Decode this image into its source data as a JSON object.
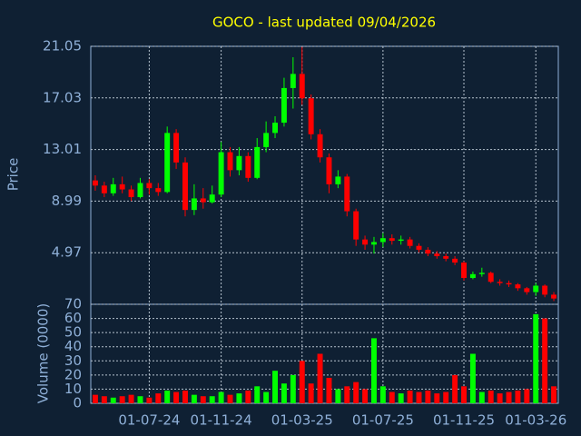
{
  "chart_data": {
    "type": "candlestick",
    "title": "GOCO - last updated 09/04/2026",
    "ylabel": "Price",
    "volume_label": "Volume (0000)",
    "up_color": "#00ff00",
    "down_color": "#ff0000",
    "grid": true,
    "ylim": [
      0.95,
      21.05
    ],
    "yticks": [
      4.97,
      8.99,
      13.01,
      17.03,
      21.05
    ],
    "volume_ylim": [
      0,
      70
    ],
    "volume_yticks": [
      0,
      10,
      20,
      30,
      40,
      50,
      60,
      70
    ],
    "categories": [
      null,
      null,
      null,
      null,
      null,
      null,
      "01-07-24",
      null,
      null,
      null,
      null,
      null,
      null,
      null,
      "01-11-24",
      null,
      null,
      null,
      null,
      null,
      null,
      null,
      null,
      "01-03-25",
      null,
      null,
      null,
      null,
      null,
      null,
      null,
      null,
      "01-07-25",
      null,
      null,
      null,
      null,
      null,
      null,
      null,
      null,
      "01-11-25",
      null,
      null,
      null,
      null,
      null,
      null,
      null,
      "01-03-26",
      null,
      null
    ],
    "open": [
      10.6,
      10.2,
      9.6,
      10.3,
      9.9,
      9.3,
      10.4,
      10.0,
      9.7,
      14.3,
      12.0,
      8.3,
      9.2,
      8.9,
      9.5,
      12.8,
      11.4,
      12.5,
      10.8,
      13.2,
      14.3,
      15.1,
      17.8,
      18.9,
      17.0,
      14.2,
      12.4,
      10.3,
      10.9,
      8.2,
      6.0,
      5.6,
      5.8,
      6.1,
      5.9,
      6.0,
      5.5,
      5.2,
      4.9,
      4.7,
      4.5,
      4.2,
      3.0,
      3.3,
      3.4,
      2.7,
      2.6,
      2.5,
      2.2,
      1.9,
      2.4,
      1.7
    ],
    "high": [
      11.0,
      10.5,
      10.8,
      10.9,
      10.2,
      10.8,
      10.7,
      10.4,
      14.8,
      14.6,
      12.4,
      10.3,
      10.0,
      10.2,
      13.6,
      13.2,
      13.2,
      12.8,
      13.9,
      15.2,
      15.6,
      18.6,
      20.2,
      21.0,
      17.3,
      14.6,
      12.7,
      11.4,
      11.1,
      8.4,
      6.3,
      6.2,
      6.5,
      6.4,
      6.3,
      6.2,
      5.7,
      5.4,
      5.1,
      4.9,
      4.7,
      4.3,
      3.5,
      3.8,
      3.5,
      2.9,
      2.8,
      2.6,
      2.3,
      2.6,
      2.5,
      1.9
    ],
    "low": [
      9.8,
      9.3,
      9.4,
      9.6,
      9.0,
      9.2,
      9.5,
      9.4,
      9.6,
      11.5,
      7.8,
      7.9,
      8.4,
      8.8,
      9.3,
      10.9,
      11.0,
      10.5,
      10.7,
      12.8,
      13.9,
      14.8,
      16.2,
      16.5,
      13.8,
      12.0,
      9.6,
      10.0,
      7.8,
      5.5,
      5.2,
      4.9,
      5.4,
      5.6,
      5.6,
      5.3,
      5.0,
      4.7,
      4.5,
      4.3,
      4.0,
      2.8,
      2.9,
      3.1,
      2.6,
      2.4,
      2.3,
      2.0,
      1.7,
      1.6,
      1.5,
      1.2
    ],
    "close": [
      10.2,
      9.6,
      10.3,
      9.9,
      9.3,
      10.4,
      10.0,
      9.7,
      14.3,
      12.0,
      8.3,
      9.2,
      8.9,
      9.5,
      12.8,
      11.4,
      12.5,
      10.8,
      13.2,
      14.3,
      15.1,
      17.8,
      18.9,
      17.0,
      14.2,
      12.4,
      10.3,
      10.9,
      8.2,
      6.0,
      5.6,
      5.8,
      6.1,
      5.9,
      6.0,
      5.5,
      5.2,
      4.9,
      4.7,
      4.5,
      4.2,
      3.0,
      3.3,
      3.4,
      2.7,
      2.6,
      2.5,
      2.2,
      1.9,
      2.4,
      1.7,
      1.4
    ],
    "volume": [
      6,
      5,
      4,
      5,
      6,
      5,
      4,
      7,
      9,
      8,
      9,
      6,
      5,
      5,
      8,
      6,
      7,
      9,
      12,
      8,
      23,
      14,
      20,
      30,
      14,
      35,
      18,
      10,
      12,
      15,
      10,
      46,
      12,
      8,
      7,
      9,
      8,
      9,
      7,
      8,
      20,
      12,
      35,
      8,
      9,
      7,
      8,
      9,
      10,
      63,
      60,
      12
    ]
  }
}
